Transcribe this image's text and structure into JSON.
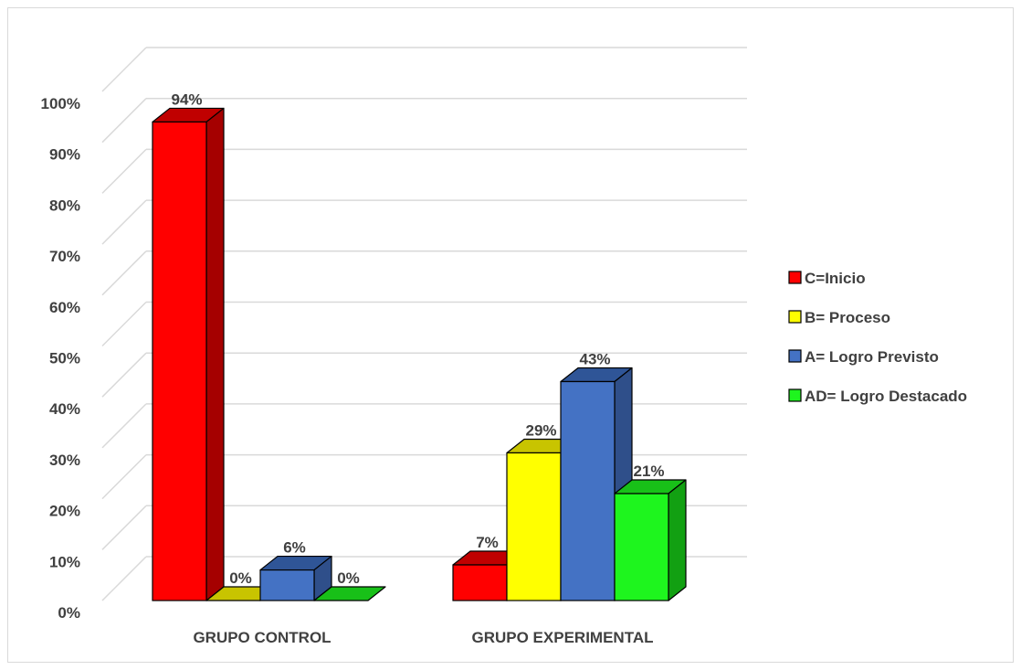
{
  "chart_data": {
    "type": "bar",
    "three_d": true,
    "categories": [
      "GRUPO CONTROL",
      "GRUPO EXPERIMENTAL"
    ],
    "series": [
      {
        "name": "C=Inicio",
        "values": [
          94,
          7
        ],
        "color": "#ff0000",
        "side_color": "#a50000",
        "top_color": "#c00000"
      },
      {
        "name": "B= Proceso",
        "values": [
          0,
          29
        ],
        "color": "#ffff00",
        "side_color": "#a6a600",
        "top_color": "#c8c400"
      },
      {
        "name": "A= Logro Previsto",
        "values": [
          6,
          43
        ],
        "color": "#4472c4",
        "side_color": "#2f4f8a",
        "top_color": "#2f5597"
      },
      {
        "name": "AD= Logro Destacado",
        "values": [
          0,
          21
        ],
        "color": "#1ef51e",
        "side_color": "#12a012",
        "top_color": "#18c018"
      }
    ],
    "data_labels": [
      [
        "94%",
        "7%"
      ],
      [
        "0%",
        "29%"
      ],
      [
        "6%",
        "43%"
      ],
      [
        "0%",
        "21%"
      ]
    ],
    "y_ticks": [
      "0%",
      "10%",
      "20%",
      "30%",
      "40%",
      "50%",
      "60%",
      "70%",
      "80%",
      "90%",
      "100%"
    ],
    "ylim": [
      0,
      100
    ],
    "grid": true,
    "legend_position": "right"
  }
}
